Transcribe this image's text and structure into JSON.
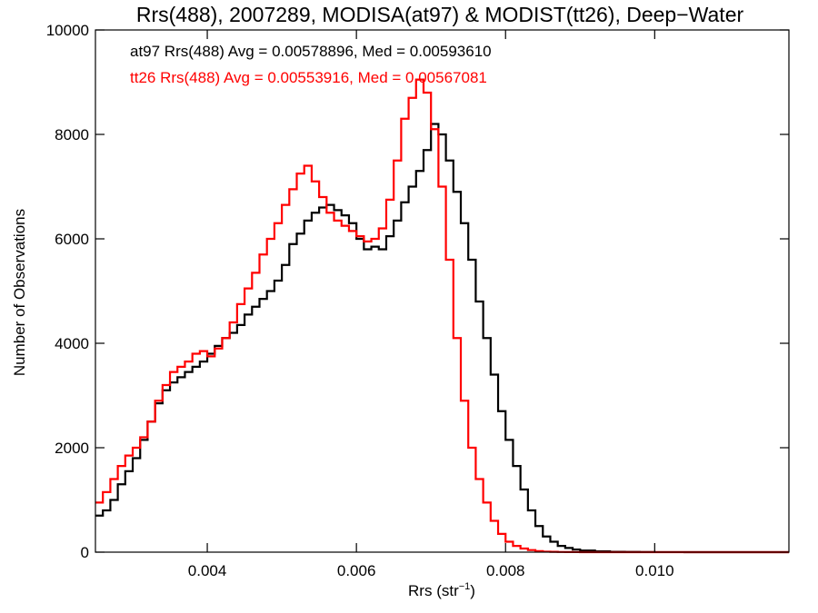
{
  "chart_data": {
    "type": "line",
    "title": "Rrs(488), 2007289, MODISA(at97) & MODIST(tt26), Deep−Water",
    "xlabel": "Rrs (str",
    "xlabel_sup": "−1",
    "xlabel_end": ")",
    "ylabel": "Number of Observations",
    "xlim": [
      0.0025,
      0.0118
    ],
    "ylim": [
      0,
      10000
    ],
    "xticks": [
      0.004,
      0.006,
      0.008,
      0.01
    ],
    "xtick_labels": [
      "0.004",
      "0.006",
      "0.008",
      "0.010"
    ],
    "yticks": [
      0,
      2000,
      4000,
      6000,
      8000,
      10000
    ],
    "ytick_labels": [
      "0",
      "2000",
      "4000",
      "6000",
      "8000",
      "10000"
    ],
    "grid": false,
    "step": true,
    "annotations": [
      {
        "text": "at97 Rrs(488) Avg = 0.00578896, Med = 0.00593610",
        "color": "#000000"
      },
      {
        "text": "tt26 Rrs(488) Avg = 0.00553916, Med = 0.00567081",
        "color": "#ff0000"
      }
    ],
    "series": [
      {
        "color": "#000000",
        "x": [
          0.0025,
          0.0026,
          0.0027,
          0.0028,
          0.0029,
          0.003,
          0.0031,
          0.0032,
          0.0033,
          0.0034,
          0.0035,
          0.0036,
          0.0037,
          0.0038,
          0.0039,
          0.004,
          0.0041,
          0.0042,
          0.0043,
          0.0044,
          0.0045,
          0.0046,
          0.0047,
          0.0048,
          0.0049,
          0.005,
          0.0051,
          0.0052,
          0.0053,
          0.0054,
          0.0055,
          0.0056,
          0.0057,
          0.0058,
          0.0059,
          0.006,
          0.0061,
          0.0062,
          0.0063,
          0.0064,
          0.0065,
          0.0066,
          0.0067,
          0.0068,
          0.0069,
          0.007,
          0.0071,
          0.0072,
          0.0073,
          0.0074,
          0.0075,
          0.0076,
          0.0077,
          0.0078,
          0.0079,
          0.008,
          0.0081,
          0.0082,
          0.0083,
          0.0084,
          0.0085,
          0.0086,
          0.0087,
          0.0088,
          0.0089,
          0.009,
          0.0092,
          0.0094,
          0.0096,
          0.0098,
          0.01,
          0.0104,
          0.0108,
          0.0112,
          0.0116,
          0.0118
        ],
        "values": [
          700,
          800,
          1000,
          1300,
          1550,
          1800,
          2150,
          2500,
          2850,
          3100,
          3250,
          3350,
          3450,
          3550,
          3650,
          3800,
          3950,
          4100,
          4200,
          4350,
          4550,
          4700,
          4850,
          5000,
          5200,
          5500,
          5900,
          6100,
          6350,
          6500,
          6600,
          6650,
          6550,
          6450,
          6300,
          6000,
          5800,
          5850,
          5800,
          6050,
          6350,
          6700,
          7000,
          7300,
          7700,
          8200,
          8000,
          7500,
          6900,
          6300,
          5600,
          4800,
          4100,
          3400,
          2700,
          2150,
          1650,
          1200,
          800,
          500,
          300,
          200,
          120,
          80,
          50,
          30,
          15,
          8,
          4,
          2,
          1,
          0,
          0,
          0,
          0,
          0
        ]
      },
      {
        "color": "#ff0000",
        "x": [
          0.0025,
          0.0026,
          0.0027,
          0.0028,
          0.0029,
          0.003,
          0.0031,
          0.0032,
          0.0033,
          0.0034,
          0.0035,
          0.0036,
          0.0037,
          0.0038,
          0.0039,
          0.004,
          0.0041,
          0.0042,
          0.0043,
          0.0044,
          0.0045,
          0.0046,
          0.0047,
          0.0048,
          0.0049,
          0.005,
          0.0051,
          0.0052,
          0.0053,
          0.0054,
          0.0055,
          0.0056,
          0.0057,
          0.0058,
          0.0059,
          0.006,
          0.0061,
          0.0062,
          0.0063,
          0.0064,
          0.0065,
          0.0066,
          0.0067,
          0.0068,
          0.0069,
          0.007,
          0.0071,
          0.0072,
          0.0073,
          0.0074,
          0.0075,
          0.0076,
          0.0077,
          0.0078,
          0.0079,
          0.008,
          0.0081,
          0.0082,
          0.0083,
          0.0084,
          0.0085,
          0.0086,
          0.0087,
          0.0088,
          0.0089,
          0.009,
          0.0092,
          0.0094,
          0.0096,
          0.0098,
          0.01,
          0.0104,
          0.0108,
          0.0112,
          0.0116,
          0.0118
        ],
        "values": [
          950,
          1150,
          1400,
          1650,
          1850,
          2000,
          2200,
          2500,
          2900,
          3200,
          3450,
          3550,
          3650,
          3800,
          3850,
          3750,
          3900,
          4100,
          4400,
          4750,
          5050,
          5350,
          5700,
          6000,
          6300,
          6650,
          6950,
          7250,
          7400,
          7100,
          6800,
          6500,
          6350,
          6250,
          6150,
          6050,
          5950,
          6000,
          6200,
          6750,
          7500,
          8300,
          8700,
          9050,
          8800,
          8100,
          7000,
          5600,
          4100,
          2900,
          2000,
          1400,
          950,
          600,
          350,
          200,
          120,
          70,
          40,
          20,
          10,
          6,
          3,
          2,
          1,
          0,
          0,
          0,
          0,
          0,
          0,
          0,
          0,
          0,
          0,
          0
        ]
      }
    ]
  }
}
